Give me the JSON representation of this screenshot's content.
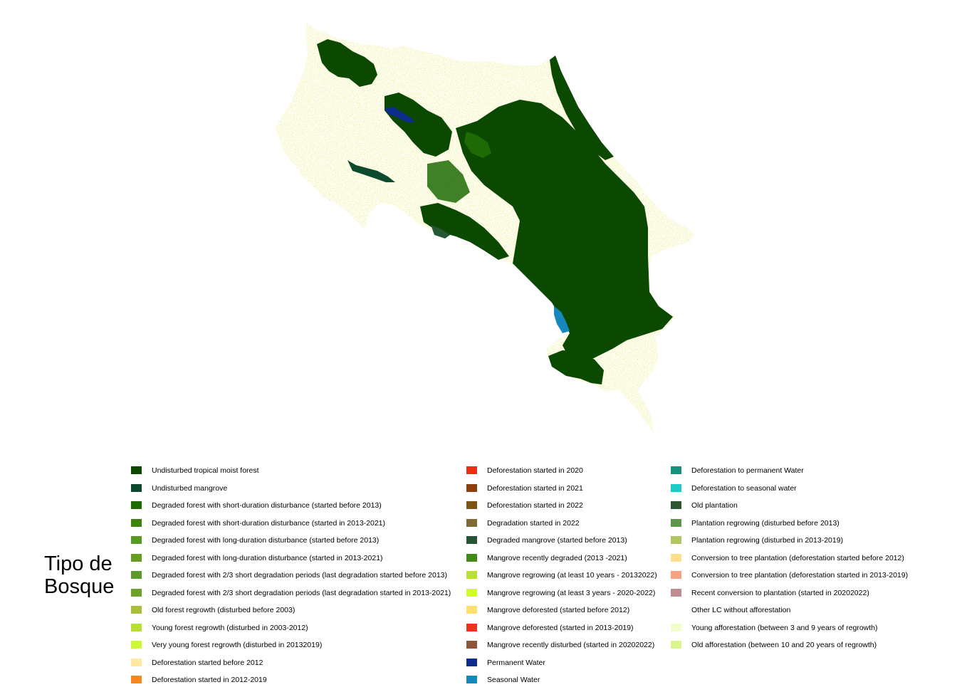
{
  "legend": {
    "title_line1": "Tipo de",
    "title_line2": "Bosque",
    "columns": [
      [
        {
          "label": "Undisturbed tropical moist forest",
          "color": "#0b4800"
        },
        {
          "label": "Undisturbed mangrove",
          "color": "#0b4a2c"
        },
        {
          "label": "Degraded forest with short-duration disturbance (started before 2013)",
          "color": "#1e6b06"
        },
        {
          "label": "Degraded forest with short-duration disturbance (started in 2013-2021)",
          "color": "#3f840a"
        },
        {
          "label": "Degraded forest with long-duration disturbance (started before 2013)",
          "color": "#569a20"
        },
        {
          "label": "Degraded forest with long-duration disturbance (started in 2013-2021)",
          "color": "#669d1e"
        },
        {
          "label": "Degraded forest with 2/3 short degradation periods (last degradation started before 2013)",
          "color": "#5c9a2c"
        },
        {
          "label": "Degraded forest with 2/3 short degradation periods (last degradation started in 2013-2021)",
          "color": "#6ba32a"
        },
        {
          "label": "Old forest regrowth (disturbed before 2003)",
          "color": "#a6c03a"
        },
        {
          "label": "Young forest regrowth (disturbed in 2003-2012)",
          "color": "#b7df34"
        },
        {
          "label": "Very young forest regrowth (disturbed in 20132019)",
          "color": "#ccf934"
        },
        {
          "label": "Deforestation started before 2012",
          "color": "#ffe99f"
        },
        {
          "label": "Deforestation started in 2012-2019",
          "color": "#f6881d"
        }
      ],
      [
        {
          "label": "Deforestation started in 2020",
          "color": "#ef2c18"
        },
        {
          "label": "Deforestation started in 2021",
          "color": "#8f3f0e"
        },
        {
          "label": "Deforestation started in 2022",
          "color": "#7a5516"
        },
        {
          "label": "Degradation started in 2022",
          "color": "#7f6a34"
        },
        {
          "label": "Degraded mangrove (started before 2013)",
          "color": "#265734"
        },
        {
          "label": "Mangrove recently degraded (2013 -2021)",
          "color": "#418a14"
        },
        {
          "label": "Mangrove regrowing (at least 10 years - 20132022)",
          "color": "#b9e036"
        },
        {
          "label": "Mangrove regrowing (at least 3 years - 2020-2022)",
          "color": "#d0fb2c"
        },
        {
          "label": "Mangrove deforested (started before 2012)",
          "color": "#ffe06a"
        },
        {
          "label": "Mangrove deforested (started in 2013-2019)",
          "color": "#f1311c"
        },
        {
          "label": "Mangrove recently disturbed (started in 20202022)",
          "color": "#8b563d"
        },
        {
          "label": "Permanent Water",
          "color": "#0c2b8a"
        },
        {
          "label": "Seasonal Water",
          "color": "#1788bd"
        }
      ],
      [
        {
          "label": "Deforestation to permanent Water",
          "color": "#17927e"
        },
        {
          "label": "Deforestation to seasonal water",
          "color": "#1ccbc6"
        },
        {
          "label": "Old plantation",
          "color": "#2d5632"
        },
        {
          "label": "Plantation regrowing (disturbed before 2013)",
          "color": "#5b964a"
        },
        {
          "label": "Plantation regrowing (disturbed in 2013-2019)",
          "color": "#b1c65e"
        },
        {
          "label": "Conversion to tree plantation (deforestation started before 2012)",
          "color": "#ffe08a"
        },
        {
          "label": "Conversion to tree plantation (deforestation started in 2013-2019)",
          "color": "#f5a182"
        },
        {
          "label": "Recent conversion to plantation (started in 20202022)",
          "color": "#c28c8f"
        },
        {
          "label": "Other LC without afforestation",
          "color": "#ffffff"
        },
        {
          "label": "Young afforestation (between 3 and 9 years of regrowth)",
          "color": "#eeffcc"
        },
        {
          "label": "Old afforestation (between 10 and 20 years of regrowth)",
          "color": "#d9f78c"
        }
      ]
    ]
  },
  "map": {
    "land_color": "#fffde8",
    "forest_color": "#0b4800",
    "regrowth_color": "#b7df34",
    "water_color": "#0c2b8a",
    "mangrove_color": "#265734",
    "sediment_color": "#c9b88a"
  }
}
